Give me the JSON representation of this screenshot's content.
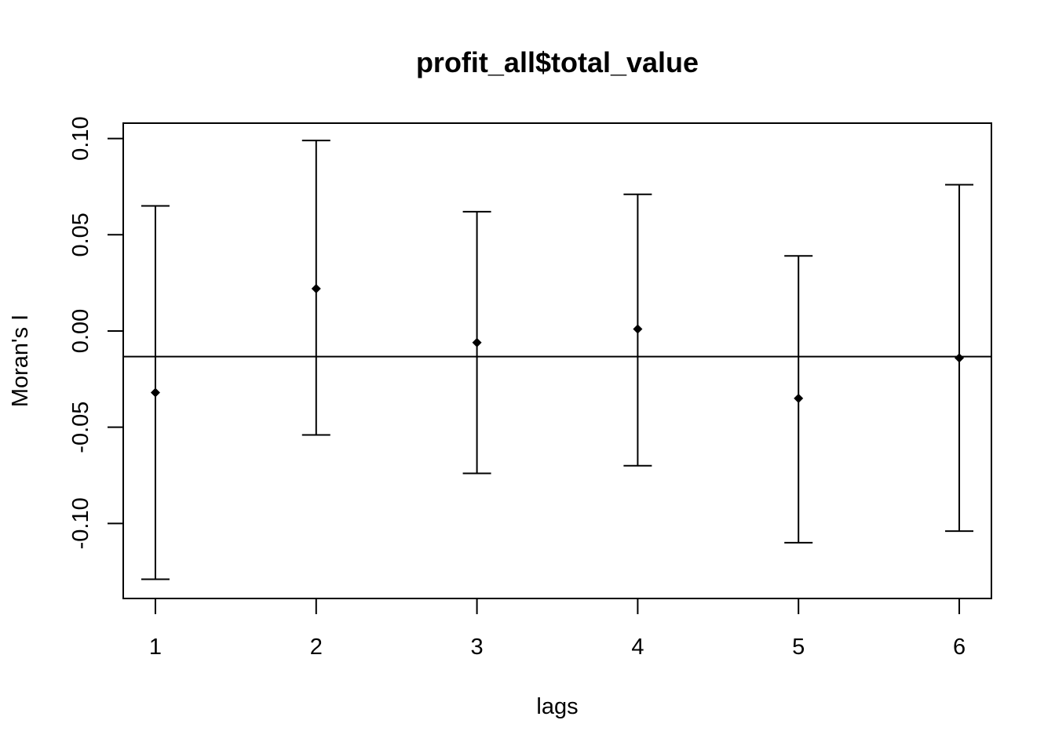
{
  "chart_data": {
    "type": "scatter",
    "title": "profit_all$total_value",
    "xlabel": "lags",
    "ylabel": "Moran's  I",
    "x": [
      1,
      2,
      3,
      4,
      5,
      6
    ],
    "xticks": [
      "1",
      "2",
      "3",
      "4",
      "5",
      "6"
    ],
    "xlim": [
      0.8,
      6.2
    ],
    "ylim": [
      -0.139,
      0.108
    ],
    "yticks": [
      -0.1,
      -0.05,
      0.0,
      0.05,
      0.1
    ],
    "ytick_labels": [
      "-0.10",
      "-0.05",
      "0.00",
      "0.05",
      "0.10"
    ],
    "estimate": [
      -0.032,
      0.022,
      -0.006,
      0.001,
      -0.035,
      -0.014
    ],
    "upper": [
      0.065,
      0.099,
      0.062,
      0.071,
      0.039,
      0.076
    ],
    "lower": [
      -0.129,
      -0.054,
      -0.074,
      -0.07,
      -0.11,
      -0.104
    ],
    "reference_line": -0.0133,
    "grid": false,
    "color": "#000000"
  }
}
